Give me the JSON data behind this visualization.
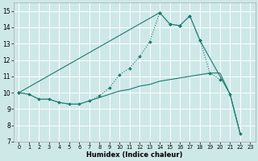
{
  "xlabel": "Humidex (Indice chaleur)",
  "xlim": [
    -0.5,
    23.5
  ],
  "ylim": [
    7,
    15.5
  ],
  "yticks": [
    7,
    8,
    9,
    10,
    11,
    12,
    13,
    14,
    15
  ],
  "xticks": [
    0,
    1,
    2,
    3,
    4,
    5,
    6,
    7,
    8,
    9,
    10,
    11,
    12,
    13,
    14,
    15,
    16,
    17,
    18,
    19,
    20,
    21,
    22,
    23
  ],
  "background_color": "#cee8e8",
  "grid_color": "#ffffff",
  "line_color": "#1a7a6e",
  "line_dotted": {
    "x": [
      0,
      1,
      2,
      3,
      4,
      5,
      6,
      7,
      8,
      9,
      10,
      11,
      12,
      13,
      14,
      15,
      16,
      17,
      18,
      19,
      20
    ],
    "y": [
      10.0,
      9.9,
      9.6,
      9.6,
      9.4,
      9.3,
      9.3,
      9.5,
      9.8,
      10.3,
      11.1,
      11.5,
      12.2,
      13.1,
      14.9,
      14.2,
      14.1,
      14.7,
      13.2,
      11.2,
      10.8
    ]
  },
  "line_upper": {
    "x": [
      0,
      14,
      15,
      16,
      17,
      18,
      21,
      22
    ],
    "y": [
      10.0,
      14.9,
      14.2,
      14.1,
      14.7,
      13.2,
      9.9,
      7.5
    ]
  },
  "line_lower": {
    "x": [
      0,
      1,
      2,
      3,
      4,
      5,
      6,
      7,
      8,
      9,
      10,
      11,
      12,
      13,
      14,
      15,
      16,
      17,
      18,
      19,
      20,
      21,
      22
    ],
    "y": [
      10.0,
      9.9,
      9.6,
      9.6,
      9.4,
      9.3,
      9.3,
      9.5,
      9.7,
      9.9,
      10.1,
      10.2,
      10.4,
      10.5,
      10.7,
      10.8,
      10.9,
      11.0,
      11.1,
      11.2,
      11.2,
      9.9,
      7.5
    ]
  }
}
